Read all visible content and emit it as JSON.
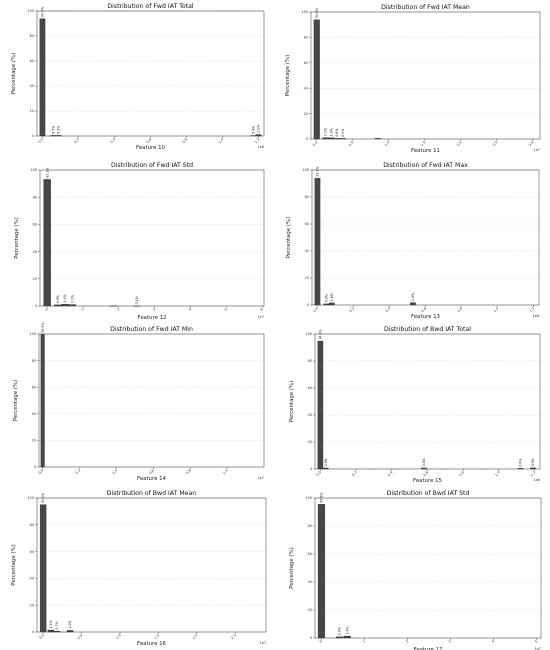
{
  "chart_data": [
    {
      "type": "bar",
      "title": "Distribution of Fwd IAT Total",
      "xlabel": "Feature 10",
      "ylabel": "Percentage (%)",
      "x_ticks": [
        "0.0",
        "0.2",
        "0.4",
        "0.6",
        "0.8",
        "1.0",
        "1.2"
      ],
      "x_offset_label": "1e8",
      "xlim": [
        -0.03,
        1.23
      ],
      "y_ticks": [
        "0",
        "20",
        "40",
        "60",
        "80",
        "100"
      ],
      "ylim": [
        0,
        100
      ],
      "bar_width": 0.03,
      "bars": [
        {
          "x": 0.0,
          "value": 93.9,
          "label": "93.9%"
        },
        {
          "x": 0.06,
          "value": 0.5,
          "label": "0.5%"
        },
        {
          "x": 0.09,
          "value": 0.5,
          "label": "0.5%"
        },
        {
          "x": 1.17,
          "value": 0.4,
          "label": "0.4%"
        },
        {
          "x": 1.2,
          "value": 1.2,
          "label": "1.2%"
        }
      ],
      "grid": "y"
    },
    {
      "type": "bar",
      "title": "Distribution of Fwd IAT Mean",
      "xlabel": "Feature 11",
      "ylabel": "Percentage (%)",
      "x_ticks": [
        "0.0",
        "0.5",
        "1.0",
        "1.5",
        "2.0",
        "2.5",
        "3.0"
      ],
      "x_offset_label": "1e7",
      "xlim": [
        -0.08,
        3.1
      ],
      "y_ticks": [
        "0",
        "20",
        "40",
        "60",
        "80",
        "100"
      ],
      "ylim": [
        0,
        100
      ],
      "bar_width": 0.08,
      "bars": [
        {
          "x": 0.0,
          "value": 94.0,
          "label": "94.0%"
        },
        {
          "x": 0.12,
          "value": 1.1,
          "label": "1.1%"
        },
        {
          "x": 0.2,
          "value": 1.0,
          "label": "1.0%"
        },
        {
          "x": 0.28,
          "value": 0.6,
          "label": "0.6%"
        },
        {
          "x": 0.36,
          "value": 0.5,
          "label": "0.5%"
        },
        {
          "x": 0.85,
          "value": 0.6,
          "label": ""
        }
      ],
      "grid": "y"
    },
    {
      "type": "bar",
      "title": "Distribution of Fwd IAT Std",
      "xlabel": "Feature 12",
      "ylabel": "Percentage (%)",
      "x_ticks": [
        "0",
        "1",
        "2",
        "3",
        "4",
        "5",
        "6"
      ],
      "x_offset_label": "1e7",
      "xlim": [
        -0.2,
        6.05
      ],
      "y_ticks": [
        "0",
        "20",
        "40",
        "60",
        "80",
        "100"
      ],
      "ylim": [
        0,
        100
      ],
      "bar_width": 0.2,
      "bars": [
        {
          "x": 0.0,
          "value": 93.1,
          "label": "93.1%"
        },
        {
          "x": 0.3,
          "value": 0.9,
          "label": "0.9%"
        },
        {
          "x": 0.5,
          "value": 1.4,
          "label": "1.4%"
        },
        {
          "x": 0.7,
          "value": 1.1,
          "label": "1.1%"
        },
        {
          "x": 1.85,
          "value": 0.2,
          "label": ""
        },
        {
          "x": 2.5,
          "value": 0.1,
          "label": "0.1%"
        }
      ],
      "grid": "y"
    },
    {
      "type": "bar",
      "title": "Distribution of Fwd IAT Max",
      "xlabel": "Feature 13",
      "ylabel": "Percentage (%)",
      "x_ticks": [
        "0.0",
        "0.2",
        "0.4",
        "0.6",
        "0.8",
        "1.0",
        "1.2"
      ],
      "x_offset_label": "1e8",
      "xlim": [
        -0.03,
        1.23
      ],
      "y_ticks": [
        "0",
        "20",
        "40",
        "60",
        "80",
        "100"
      ],
      "ylim": [
        0,
        100
      ],
      "bar_width": 0.03,
      "bars": [
        {
          "x": 0.0,
          "value": 93.9,
          "label": "93.9%"
        },
        {
          "x": 0.05,
          "value": 0.9,
          "label": "0.9%"
        },
        {
          "x": 0.08,
          "value": 1.6,
          "label": "1.6%"
        },
        {
          "x": 0.53,
          "value": 1.8,
          "label": "1.8%"
        }
      ],
      "grid": "y"
    },
    {
      "type": "bar",
      "title": "Distribution of Fwd IAT Min",
      "xlabel": "Feature 14",
      "ylabel": "Percentage (%)",
      "x_ticks": [
        "0.0",
        "0.2",
        "0.4",
        "0.6",
        "0.8",
        "1.0"
      ],
      "x_offset_label": "1e7",
      "xlim": [
        -0.02,
        1.2
      ],
      "y_ticks": [
        "0",
        "20",
        "40",
        "60",
        "80",
        "100"
      ],
      "ylim": [
        0,
        100
      ],
      "bar_width": 0.02,
      "bars": [
        {
          "x": 0.0,
          "value": 99.9,
          "label": "99.9%"
        }
      ],
      "grid": "y"
    },
    {
      "type": "bar",
      "title": "Distribution of Bwd IAT Total",
      "xlabel": "Feature 15",
      "ylabel": "Percentage (%)",
      "x_ticks": [
        "0.0",
        "0.2",
        "0.4",
        "0.6",
        "0.8",
        "1.0",
        "1.2"
      ],
      "x_offset_label": "1e8",
      "xlim": [
        -0.03,
        1.23
      ],
      "y_ticks": [
        "0",
        "20",
        "40",
        "60",
        "80",
        "100"
      ],
      "ylim": [
        0,
        100
      ],
      "bar_width": 0.03,
      "bars": [
        {
          "x": 0.0,
          "value": 94.8,
          "label": "94.8%"
        },
        {
          "x": 0.03,
          "value": 0.8,
          "label": "0.8%"
        },
        {
          "x": 0.58,
          "value": 0.8,
          "label": "0.8%"
        },
        {
          "x": 1.12,
          "value": 0.6,
          "label": "0.6%"
        },
        {
          "x": 1.19,
          "value": 0.9,
          "label": "0.9%"
        }
      ],
      "grid": "y"
    },
    {
      "type": "bar",
      "title": "Distribution of Bwd IAT Mean",
      "xlabel": "Feature 16",
      "ylabel": "Percentage (%)",
      "x_ticks": [
        "0.0",
        "0.5",
        "1.0",
        "1.5",
        "2.0",
        "2.5"
      ],
      "x_offset_label": "1e7",
      "xlim": [
        -0.08,
        2.9
      ],
      "y_ticks": [
        "0",
        "20",
        "40",
        "60",
        "80",
        "100"
      ],
      "ylim": [
        0,
        100
      ],
      "bar_width": 0.08,
      "bars": [
        {
          "x": 0.0,
          "value": 95.1,
          "label": "95.1%"
        },
        {
          "x": 0.1,
          "value": 1.5,
          "label": "1.5%"
        },
        {
          "x": 0.18,
          "value": 0.7,
          "label": "0.7%"
        },
        {
          "x": 0.35,
          "value": 1.2,
          "label": "1.2%"
        }
      ],
      "grid": "y"
    },
    {
      "type": "bar",
      "title": "Distribution of Bwd IAT Std",
      "xlabel": "Feature 17",
      "ylabel": "Percentage (%)",
      "x_ticks": [
        "0",
        "1",
        "2",
        "3",
        "4",
        "5"
      ],
      "x_offset_label": "1e7",
      "xlim": [
        -0.15,
        5.1
      ],
      "y_ticks": [
        "0",
        "20",
        "40",
        "60",
        "80",
        "100"
      ],
      "ylim": [
        0,
        100
      ],
      "bar_width": 0.16,
      "bars": [
        {
          "x": 0.0,
          "value": 95.6,
          "label": "95.6%"
        },
        {
          "x": 0.42,
          "value": 0.9,
          "label": "0.9%"
        },
        {
          "x": 0.6,
          "value": 1.4,
          "label": "1.4%"
        }
      ],
      "grid": "y"
    }
  ]
}
